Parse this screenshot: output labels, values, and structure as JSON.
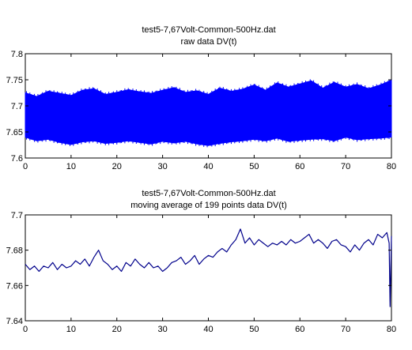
{
  "chart_data": [
    {
      "type": "line",
      "title": "test5-7,67Volt-Common-500Hz.dat",
      "subtitle": "raw data DV(t)",
      "xlabel": "",
      "ylabel": "",
      "xlim": [
        0,
        80
      ],
      "ylim": [
        7.6,
        7.8
      ],
      "grid": false,
      "x_ticks": [
        0,
        10,
        20,
        30,
        40,
        50,
        60,
        70,
        80
      ],
      "y_ticks": [
        7.6,
        7.65,
        7.7,
        7.75,
        7.8
      ],
      "x_tick_labels": [
        "0",
        "10",
        "20",
        "30",
        "40",
        "50",
        "60",
        "70",
        "80"
      ],
      "y_tick_labels": [
        "7.6",
        "7.65",
        "7.7",
        "7.75",
        "7.8"
      ],
      "series_color": "#0000ff",
      "band": {
        "x": [
          0,
          2.5,
          5,
          7.5,
          10,
          12.5,
          15,
          17.5,
          20,
          22.5,
          25,
          27.5,
          30,
          32.5,
          35,
          37.5,
          40,
          42.5,
          45,
          47.5,
          50,
          52.5,
          55,
          57.5,
          60,
          62.5,
          65,
          67.5,
          70,
          72.5,
          75,
          77.5,
          80
        ],
        "upper": [
          7.725,
          7.718,
          7.728,
          7.724,
          7.72,
          7.73,
          7.733,
          7.722,
          7.726,
          7.731,
          7.727,
          7.724,
          7.73,
          7.735,
          7.726,
          7.729,
          7.722,
          7.734,
          7.728,
          7.732,
          7.74,
          7.73,
          7.744,
          7.736,
          7.742,
          7.748,
          7.734,
          7.745,
          7.736,
          7.741,
          7.733,
          7.74,
          7.749
        ],
        "lower": [
          7.64,
          7.633,
          7.636,
          7.63,
          7.626,
          7.631,
          7.633,
          7.628,
          7.63,
          7.633,
          7.63,
          7.627,
          7.632,
          7.629,
          7.632,
          7.627,
          7.624,
          7.628,
          7.631,
          7.633,
          7.636,
          7.633,
          7.638,
          7.632,
          7.634,
          7.636,
          7.637,
          7.633,
          7.64,
          7.635,
          7.637,
          7.638,
          7.64
        ]
      }
    },
    {
      "type": "line",
      "title": "test5-7,67Volt-Common-500Hz.dat",
      "subtitle": "moving average of 199 points data DV(t)",
      "xlabel": "",
      "ylabel": "",
      "xlim": [
        0,
        80
      ],
      "ylim": [
        7.64,
        7.7
      ],
      "grid": false,
      "x_ticks": [
        0,
        10,
        20,
        30,
        40,
        50,
        60,
        70,
        80
      ],
      "y_ticks": [
        7.64,
        7.66,
        7.68,
        7.7
      ],
      "x_tick_labels": [
        "0",
        "10",
        "20",
        "30",
        "40",
        "50",
        "60",
        "70",
        "80"
      ],
      "y_tick_labels": [
        "7.64",
        "7.66",
        "7.68",
        "7.7"
      ],
      "series_color": "#00008b",
      "x": [
        0,
        1,
        2,
        3,
        4,
        5,
        6,
        7,
        8,
        9,
        10,
        11,
        12,
        13,
        14,
        15,
        16,
        17,
        18,
        19,
        20,
        21,
        22,
        23,
        24,
        25,
        26,
        27,
        28,
        29,
        30,
        31,
        32,
        33,
        34,
        35,
        36,
        37,
        38,
        39,
        40,
        41,
        42,
        43,
        44,
        45,
        46,
        47,
        48,
        49,
        50,
        51,
        52,
        53,
        54,
        55,
        56,
        57,
        58,
        59,
        60,
        61,
        62,
        63,
        64,
        65,
        66,
        67,
        68,
        69,
        70,
        71,
        72,
        73,
        74,
        75,
        76,
        77,
        78,
        79,
        79.5,
        79.7,
        80
      ],
      "y": [
        7.672,
        7.669,
        7.671,
        7.668,
        7.671,
        7.67,
        7.673,
        7.669,
        7.672,
        7.67,
        7.671,
        7.674,
        7.672,
        7.675,
        7.671,
        7.676,
        7.68,
        7.674,
        7.672,
        7.669,
        7.671,
        7.668,
        7.673,
        7.671,
        7.675,
        7.672,
        7.67,
        7.673,
        7.67,
        7.671,
        7.668,
        7.67,
        7.673,
        7.674,
        7.676,
        7.672,
        7.674,
        7.677,
        7.672,
        7.675,
        7.677,
        7.676,
        7.679,
        7.681,
        7.679,
        7.683,
        7.686,
        7.692,
        7.684,
        7.687,
        7.683,
        7.686,
        7.684,
        7.682,
        7.684,
        7.683,
        7.685,
        7.683,
        7.686,
        7.684,
        7.685,
        7.687,
        7.689,
        7.684,
        7.686,
        7.684,
        7.681,
        7.685,
        7.686,
        7.683,
        7.682,
        7.679,
        7.683,
        7.68,
        7.684,
        7.686,
        7.683,
        7.689,
        7.687,
        7.69,
        7.684,
        7.648,
        7.688
      ]
    }
  ]
}
